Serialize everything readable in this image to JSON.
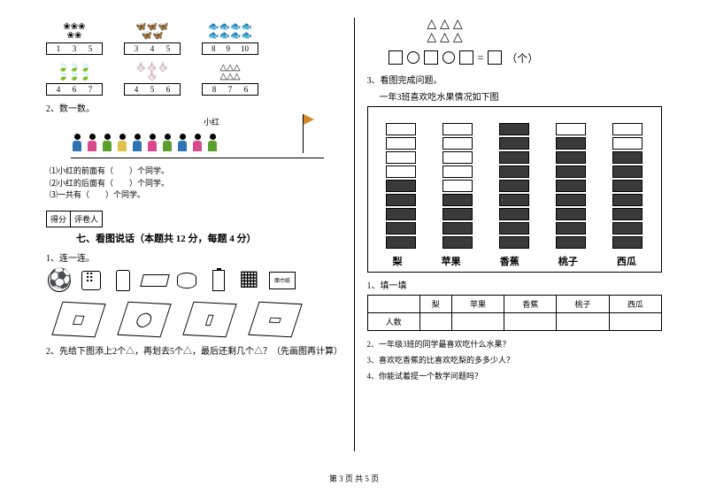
{
  "left": {
    "counting": {
      "row1": [
        {
          "icons": "❀❀❀\n❀❀",
          "nums": [
            "1",
            "3",
            "5"
          ]
        },
        {
          "icons": "🦋🦋🦋\n🦋🦋",
          "nums": [
            "3",
            "4",
            "5"
          ]
        },
        {
          "icons": "🐟🐟🐟🐟\n🐟🐟🐟🐟",
          "nums": [
            "8",
            "9",
            "10"
          ]
        }
      ],
      "row2": [
        {
          "icons": "🍃🍃🍃\n🍃🍃🍃",
          "nums": [
            "4",
            "6",
            "7"
          ]
        },
        {
          "icons": "🧄🧄🧄\n🧄",
          "nums": [
            "4",
            "5",
            "6"
          ]
        },
        {
          "icons": "△△△\n△△△",
          "nums": [
            "8",
            "7",
            "6"
          ]
        }
      ]
    },
    "q2_label": "2、数一数。",
    "queue": {
      "xh_label": "小红",
      "colors": [
        "#2e74b5",
        "#d94a8c",
        "#5aa02c",
        "#e0c04a",
        "#2e74b5",
        "#d94a8c",
        "#5aa02c",
        "#2e74b5",
        "#d94a8c",
        "#5aa02c"
      ],
      "lines": [
        "⑴小红的前面有（　　）个同学。",
        "⑵小红的后面有（　　）个同学。",
        "⑶一共有（　　）个同学。"
      ]
    },
    "score": {
      "a": "得分",
      "b": "评卷人"
    },
    "section7": "七、看图说话（本题共 12 分，每题 4 分）",
    "q1_label": "1、连一连。",
    "tissue_text": "面巾纸",
    "q2b_label": "2、先给下图添上2个△，再划去5个△，最后还剩几个△？（先画图再计算）"
  },
  "right": {
    "eq_tail": "（个）",
    "q3_label": "3、看图完成问题。",
    "q3_sub": "一年3班喜欢吃水果情况如下图",
    "chart": {
      "max_cells": 9,
      "fruits": [
        {
          "name": "梨",
          "count": 5
        },
        {
          "name": "苹果",
          "count": 4
        },
        {
          "name": "香蕉",
          "count": 9
        },
        {
          "name": "桃子",
          "count": 8
        },
        {
          "name": "西瓜",
          "count": 7
        }
      ],
      "cell_fill": "#3a3a3a",
      "cell_empty": "#ffffff"
    },
    "t1_label": "1、填一填",
    "table": {
      "head_blank": "",
      "cols": [
        "梨",
        "苹果",
        "香蕉",
        "桃子",
        "西瓜"
      ],
      "row_label": "人数"
    },
    "questions": [
      "2、一年级3班的同学最喜欢吃什么水果？",
      "3、喜欢吃香蕉的比喜欢吃梨的多多少人？",
      "4、你能试着提一个数学问题吗？"
    ]
  },
  "footer": "第 3 页  共 5 页"
}
